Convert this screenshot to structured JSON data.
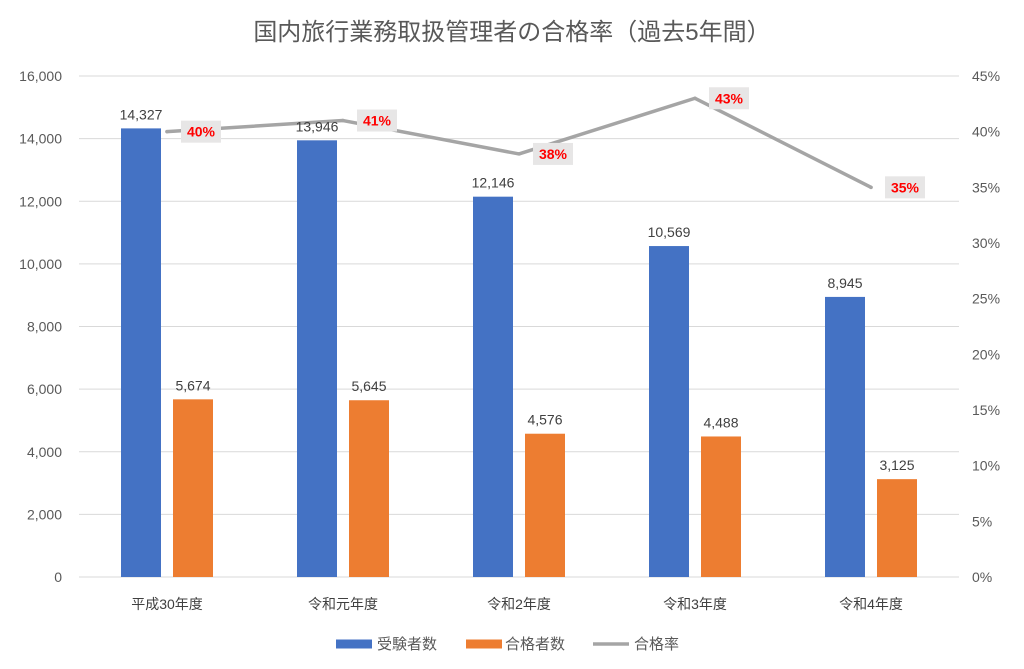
{
  "chart_data": {
    "type": "bar",
    "title": "国内旅行業務取扱管理者の合格率（過去5年間）",
    "categories": [
      "平成30年度",
      "令和元年度",
      "令和2年度",
      "令和3年度",
      "令和4年度"
    ],
    "series": [
      {
        "name": "受験者数",
        "type": "bar",
        "axis": "left",
        "color": "#4472c4",
        "values": [
          14327,
          13946,
          12146,
          10569,
          8945
        ],
        "labels": [
          "14,327",
          "13,946",
          "12,146",
          "10,569",
          "8,945"
        ]
      },
      {
        "name": "合格者数",
        "type": "bar",
        "axis": "left",
        "color": "#ed7d31",
        "values": [
          5674,
          5645,
          4576,
          4488,
          3125
        ],
        "labels": [
          "5,674",
          "5,645",
          "4,576",
          "4,488",
          "3,125"
        ]
      },
      {
        "name": "合格率",
        "type": "line",
        "axis": "right",
        "color": "#a5a5a5",
        "values": [
          40,
          41,
          38,
          43,
          35
        ],
        "labels": [
          "40%",
          "41%",
          "38%",
          "43%",
          "35%"
        ],
        "label_color": "#ff0000",
        "label_background": "#e7e6e6"
      }
    ],
    "y_left": {
      "ylim": [
        0,
        16000
      ],
      "tick_labels": [
        "0",
        "2,000",
        "4,000",
        "6,000",
        "8,000",
        "10,000",
        "12,000",
        "14,000",
        "16,000"
      ]
    },
    "y_right": {
      "ylim": [
        0,
        45
      ],
      "tick_labels": [
        "0%",
        "5%",
        "10%",
        "15%",
        "20%",
        "25%",
        "30%",
        "35%",
        "40%",
        "45%"
      ]
    },
    "grid": true,
    "legend": "bottom"
  }
}
